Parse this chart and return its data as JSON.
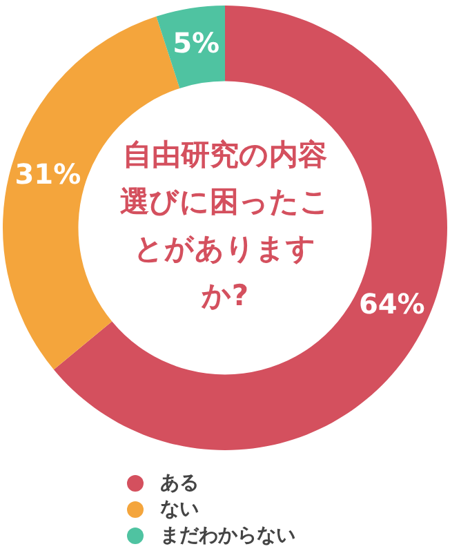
{
  "chart_data": {
    "type": "donut",
    "title": "自由研究の内容選びに困ったことがありますか?",
    "categories": [
      "ある",
      "ない",
      "まだわからない"
    ],
    "values": [
      64,
      31,
      5
    ],
    "colors": [
      "#d4505e",
      "#f4a53c",
      "#4fc3a1"
    ],
    "value_labels": [
      "64%",
      "31%",
      "5%"
    ],
    "legend": "bottom"
  }
}
